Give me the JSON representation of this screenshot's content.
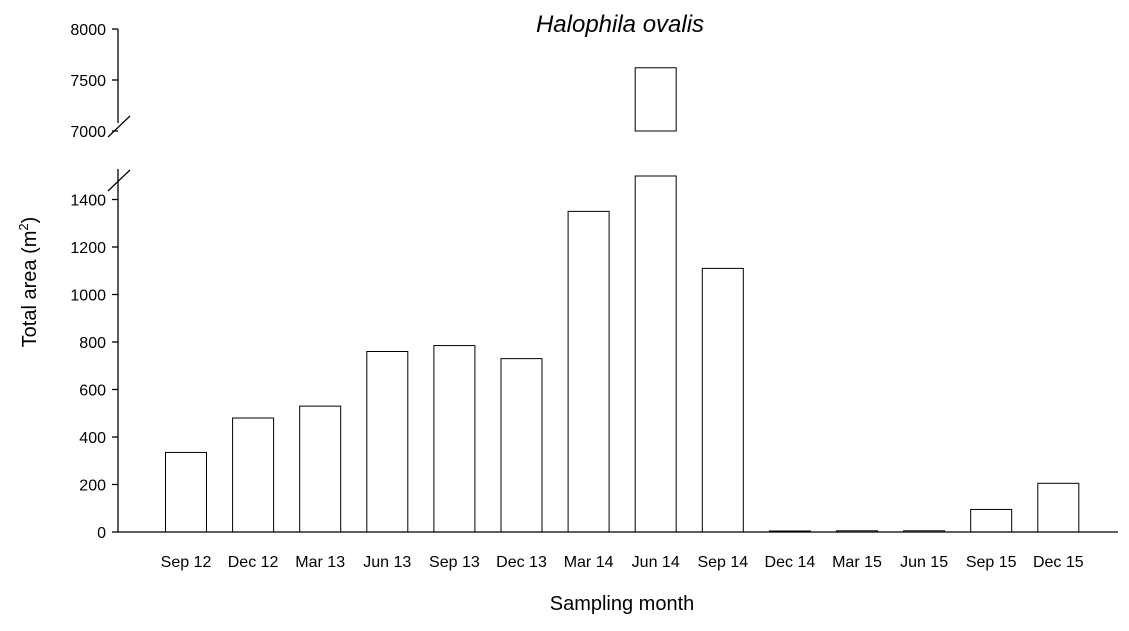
{
  "chart_data": {
    "type": "bar",
    "title": "Halophila ovalis",
    "xlabel": "Sampling month",
    "ylabel_main": "Total area (m",
    "ylabel_sup": "2",
    "ylabel_close": ")",
    "categories": [
      "Sep 12",
      "Dec 12",
      "Mar 13",
      "Jun 13",
      "Sep 13",
      "Dec 13",
      "Mar 14",
      "Jun 14",
      "Sep 14",
      "Dec 14",
      "Mar 15",
      "Jun 15",
      "Sep 15",
      "Dec 15"
    ],
    "values": [
      335,
      480,
      530,
      760,
      785,
      730,
      1350,
      7620,
      1110,
      0,
      5,
      5,
      95,
      205
    ],
    "y_axis_break": true,
    "ylim_lower": [
      0,
      1500
    ],
    "ylim_upper": [
      7000,
      8000
    ],
    "yticks_lower": [
      "0",
      "200",
      "400",
      "600",
      "800",
      "1000",
      "1200",
      "1400"
    ],
    "yticks_upper": [
      "7000",
      "7500",
      "8000"
    ],
    "bar_fill": "#ffffff",
    "bar_stroke": "#000000"
  }
}
